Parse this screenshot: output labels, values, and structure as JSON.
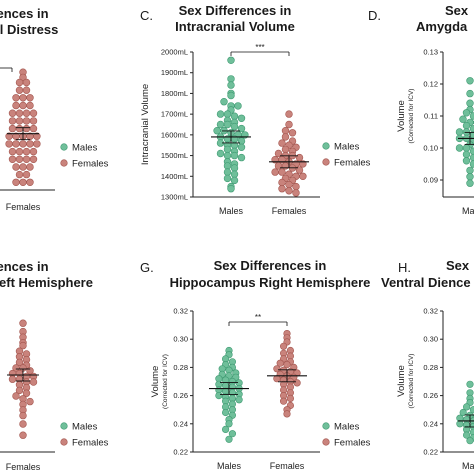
{
  "colors": {
    "males": "#6fbf9a",
    "males_stroke": "#3f9a72",
    "females": "#c9837c",
    "females_stroke": "#a3554e",
    "axis": "#222222"
  },
  "chart_data": [
    {
      "id": "B",
      "label": "",
      "type": "scatter",
      "title_lines": [
        "Sex Differences in",
        "Psychological Distress"
      ],
      "title_visible": [
        "rences in",
        "ical Distress"
      ],
      "categories": [
        "Females"
      ],
      "series": [
        {
          "name": "Males",
          "values": []
        },
        {
          "name": "Females",
          "mean": 0.44,
          "values": [
            0.92,
            0.88,
            0.84,
            0.84,
            0.78,
            0.78,
            0.72,
            0.72,
            0.72,
            0.66,
            0.66,
            0.66,
            0.6,
            0.6,
            0.6,
            0.6,
            0.54,
            0.54,
            0.54,
            0.54,
            0.48,
            0.48,
            0.48,
            0.48,
            0.42,
            0.42,
            0.42,
            0.42,
            0.42,
            0.36,
            0.36,
            0.36,
            0.36,
            0.36,
            0.3,
            0.3,
            0.3,
            0.3,
            0.24,
            0.24,
            0.24,
            0.24,
            0.18,
            0.18,
            0.18,
            0.12,
            0.12,
            0.06,
            0.06,
            0.06
          ]
        }
      ],
      "legend": [
        "Males",
        "Females"
      ]
    },
    {
      "id": "C",
      "label": "C.",
      "type": "scatter",
      "title_lines": [
        "Sex Differences in",
        "Intracranial Volume"
      ],
      "ylabel": "Intracranial Volume",
      "ysub": "",
      "ylim": [
        1300,
        2000
      ],
      "yticks": [
        "1300mL",
        "1400mL",
        "1500mL",
        "1600mL",
        "1700mL",
        "1800mL",
        "1900mL",
        "2000mL"
      ],
      "categories": [
        "Males",
        "Females"
      ],
      "significance": "***",
      "series": [
        {
          "name": "Males",
          "mean": 1590,
          "values": [
            1960,
            1870,
            1840,
            1800,
            1790,
            1760,
            1740,
            1740,
            1720,
            1700,
            1700,
            1690,
            1680,
            1670,
            1660,
            1650,
            1650,
            1640,
            1630,
            1620,
            1620,
            1610,
            1600,
            1600,
            1590,
            1580,
            1580,
            1570,
            1560,
            1550,
            1550,
            1540,
            1530,
            1520,
            1510,
            1500,
            1500,
            1490,
            1470,
            1460,
            1450,
            1440,
            1420,
            1410,
            1390,
            1380,
            1350,
            1340
          ]
        },
        {
          "name": "Females",
          "mean": 1470,
          "values": [
            1700,
            1650,
            1620,
            1610,
            1590,
            1570,
            1560,
            1550,
            1540,
            1530,
            1520,
            1510,
            1500,
            1500,
            1490,
            1480,
            1480,
            1470,
            1460,
            1460,
            1450,
            1450,
            1440,
            1430,
            1420,
            1420,
            1410,
            1400,
            1400,
            1390,
            1380,
            1370,
            1360,
            1350,
            1340,
            1330,
            1320
          ]
        }
      ],
      "legend": [
        "Males",
        "Females"
      ]
    },
    {
      "id": "D",
      "label": "D.",
      "type": "scatter",
      "title_lines": [
        "Sex Differences in",
        "Amygdala"
      ],
      "title_visible": [
        "Sex",
        "Amygda"
      ],
      "ylabel": "Volume",
      "ysub": "(Corrected for ICV)",
      "ylim": [
        0.085,
        0.13
      ],
      "yticks": [
        "0.09",
        "0.10",
        "0.11",
        "0.12",
        "0.13"
      ],
      "categories": [
        "Males"
      ],
      "xcat_visible": [
        "Ma"
      ],
      "series": [
        {
          "name": "Males",
          "mean": 0.103,
          "values": [
            0.121,
            0.117,
            0.114,
            0.112,
            0.111,
            0.11,
            0.109,
            0.108,
            0.108,
            0.107,
            0.106,
            0.105,
            0.105,
            0.104,
            0.104,
            0.103,
            0.103,
            0.102,
            0.102,
            0.101,
            0.1,
            0.1,
            0.099,
            0.099,
            0.098,
            0.097,
            0.096,
            0.095,
            0.093,
            0.091,
            0.089
          ]
        }
      ]
    },
    {
      "id": "F",
      "label": "",
      "type": "scatter",
      "title_lines": [
        "Sex Differences in",
        "Hippocampus Left Hemisphere"
      ],
      "title_visible": [
        "rences in",
        "eft Hemisphere"
      ],
      "categories": [
        "Females"
      ],
      "series": [
        {
          "name": "Males",
          "values": []
        },
        {
          "name": "Females",
          "mean": 0.55,
          "values": [
            0.92,
            0.86,
            0.82,
            0.78,
            0.76,
            0.72,
            0.7,
            0.68,
            0.66,
            0.64,
            0.62,
            0.6,
            0.6,
            0.58,
            0.56,
            0.56,
            0.54,
            0.54,
            0.52,
            0.52,
            0.5,
            0.5,
            0.48,
            0.46,
            0.44,
            0.42,
            0.4,
            0.38,
            0.36,
            0.34,
            0.3,
            0.26,
            0.2,
            0.12
          ]
        }
      ],
      "legend": [
        "Males",
        "Females"
      ]
    },
    {
      "id": "G",
      "label": "G.",
      "type": "scatter",
      "title_lines": [
        "Sex Differences in",
        "Hippocampus Right Hemisphere"
      ],
      "ylabel": "Volume",
      "ysub": "(Corrected for ICV)",
      "ylim": [
        0.22,
        0.32
      ],
      "yticks": [
        "0.22",
        "0.24",
        "0.26",
        "0.28",
        "0.30",
        "0.32"
      ],
      "categories": [
        "Males",
        "Females"
      ],
      "significance": "**",
      "series": [
        {
          "name": "Males",
          "mean": 0.265,
          "values": [
            0.292,
            0.289,
            0.286,
            0.284,
            0.282,
            0.28,
            0.279,
            0.278,
            0.276,
            0.275,
            0.274,
            0.273,
            0.272,
            0.271,
            0.27,
            0.269,
            0.268,
            0.267,
            0.266,
            0.265,
            0.264,
            0.263,
            0.262,
            0.261,
            0.26,
            0.259,
            0.258,
            0.257,
            0.256,
            0.254,
            0.252,
            0.25,
            0.248,
            0.246,
            0.243,
            0.24,
            0.236,
            0.233,
            0.229
          ]
        },
        {
          "name": "Females",
          "mean": 0.274,
          "values": [
            0.304,
            0.301,
            0.298,
            0.295,
            0.292,
            0.29,
            0.288,
            0.286,
            0.284,
            0.283,
            0.282,
            0.28,
            0.279,
            0.278,
            0.277,
            0.276,
            0.275,
            0.274,
            0.273,
            0.272,
            0.271,
            0.27,
            0.269,
            0.268,
            0.266,
            0.264,
            0.262,
            0.26,
            0.258,
            0.256,
            0.253,
            0.25,
            0.247
          ]
        }
      ],
      "legend": [
        "Males",
        "Females"
      ]
    },
    {
      "id": "H",
      "label": "H.",
      "type": "scatter",
      "title_lines": [
        "Sex Differences in",
        "Ventral Diencephalon"
      ],
      "title_visible": [
        "Sex",
        "Ventral Dience"
      ],
      "ylabel": "Volume",
      "ysub": "(Corrected for ICV)",
      "ylim": [
        0.22,
        0.32
      ],
      "yticks": [
        "0.22",
        "0.24",
        "0.26",
        "0.28",
        "0.30",
        "0.32"
      ],
      "categories": [
        "Males"
      ],
      "xcat_visible": [
        "Ma"
      ],
      "series": [
        {
          "name": "Males",
          "mean": 0.242,
          "values": [
            0.268,
            0.262,
            0.258,
            0.255,
            0.252,
            0.25,
            0.248,
            0.246,
            0.245,
            0.244,
            0.243,
            0.242,
            0.241,
            0.24,
            0.239,
            0.238,
            0.237,
            0.236,
            0.234,
            0.232,
            0.23,
            0.228
          ]
        }
      ]
    }
  ]
}
